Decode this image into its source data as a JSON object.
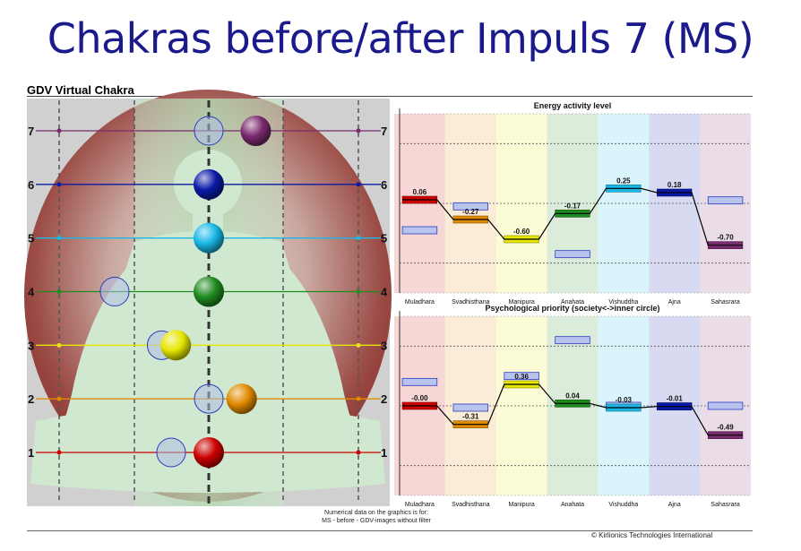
{
  "title": "Chakras before/after Impuls 7 (MS)",
  "panel_title": "GDV Virtual Chakra",
  "level_labels": [
    "1",
    "2",
    "3",
    "4",
    "5",
    "6",
    "7"
  ],
  "footnote_line1": "Numerical data on the graphics is for:",
  "footnote_line2": "MS - before - GDV-images without filter",
  "copyright": "© Kirlionics Technologies International",
  "colors": {
    "muladhara": "#cc0000",
    "svadhisthana": "#e08a00",
    "manipura": "#e6e600",
    "anahata": "#1f8a1f",
    "vishuddha": "#1ab8e6",
    "ajna": "#0a1aa6",
    "sahasrara": "#7a2a6e",
    "before_box": "#b8c4ee",
    "silhouette": "#cfe8cf"
  },
  "chart_data": [
    {
      "type": "bar",
      "title": "Energy activity level",
      "categories": [
        "Muladhara",
        "Svadhisthana",
        "Manipura",
        "Anahata",
        "Vishuddha",
        "Ajna",
        "Sahasrara"
      ],
      "series": [
        {
          "values": [
            0.06,
            -0.27,
            -0.6,
            -0.17,
            0.25,
            0.18,
            -0.7
          ]
        },
        {
          "values": [
            -0.45,
            -0.05,
            null,
            -0.85,
            null,
            null,
            0.05
          ]
        }
      ],
      "value_labels": [
        "0.06",
        "-0.27",
        "-0.60",
        "-0.17",
        "0.25",
        "0.18",
        "-0.70"
      ],
      "ylim": [
        -1.5,
        1.5
      ]
    },
    {
      "type": "bar",
      "title": "Psychological priority (society<->inner circle)",
      "categories": [
        "Muladhara",
        "Svadhisthana",
        "Manipura",
        "Anahata",
        "Vishuddha",
        "Ajna",
        "Sahasrara"
      ],
      "series": [
        {
          "values": [
            -0.0,
            -0.31,
            0.36,
            0.04,
            -0.03,
            -0.01,
            -0.49
          ]
        },
        {
          "values": [
            0.4,
            -0.03,
            0.5,
            1.1,
            0.0,
            -0.01,
            0.0
          ]
        }
      ],
      "value_labels": [
        "-0.00",
        "-0.31",
        "0.36",
        "0.04",
        "-0.03",
        "-0.01",
        "-0.49"
      ],
      "ylim": [
        -1.5,
        1.5
      ]
    },
    {
      "type": "scatter",
      "title": "",
      "levels": [
        1,
        2,
        3,
        4,
        5,
        6,
        7
      ],
      "series": [
        {
          "values": [
            0.0,
            0.35,
            -0.35,
            0.0,
            0.0,
            0.0,
            0.5
          ]
        },
        {
          "values": [
            -0.4,
            0.0,
            -0.5,
            -1.0,
            0.0,
            0.0,
            0.0
          ]
        }
      ],
      "xlim": [
        -2.0,
        2.0
      ]
    }
  ]
}
